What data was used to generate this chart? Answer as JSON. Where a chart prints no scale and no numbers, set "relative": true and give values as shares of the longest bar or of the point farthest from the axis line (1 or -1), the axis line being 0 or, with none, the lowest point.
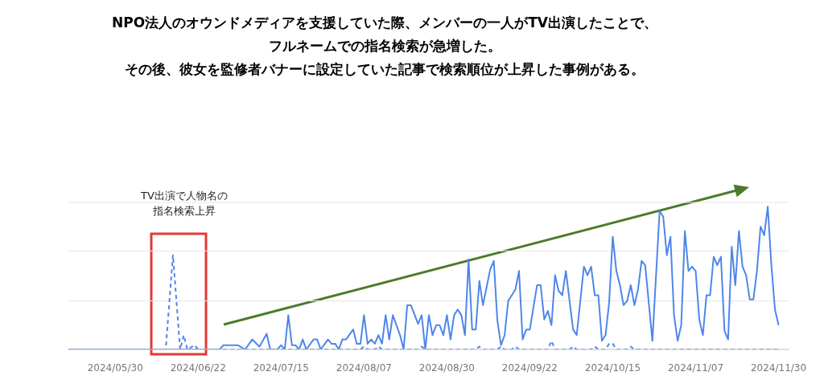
{
  "chart_data": {
    "type": "line",
    "title": "NPO法人のオウンドメディアを支援していた際、メンバーの一人がTV出演したことで、フルネームでの指名検索が急増した。",
    "subtitle": "その後、彼女を監修者バナーに設定していた記事で検索順位が上昇した事例がある。",
    "annotations": [
      "TV出演で人物名の指名検索上昇"
    ],
    "relative": true,
    "marker": "none",
    "ref_lines": [
      {
        "axis": "y",
        "value": 0.34,
        "color": "#e6e6e6"
      },
      {
        "axis": "y",
        "value": 0.69,
        "color": "#e6e6e6"
      },
      {
        "axis": "y",
        "value": 1.03,
        "color": "#e6e6e6"
      }
    ],
    "xlim": [
      "2024-05-17",
      "2024-12-03"
    ],
    "xticks": [
      {
        "value": "2024-05-30",
        "label": "2024/05/30"
      },
      {
        "value": "2024-06-22",
        "label": "2024/06/22"
      },
      {
        "value": "2024-07-15",
        "label": "2024/07/15"
      },
      {
        "value": "2024-08-07",
        "label": "2024/08/07"
      },
      {
        "value": "2024-08-30",
        "label": "2024/08/30"
      },
      {
        "value": "2024-09-22",
        "label": "2024/09/22"
      },
      {
        "value": "2024-10-15",
        "label": "2024/10/15"
      },
      {
        "value": "2024-11-07",
        "label": "2024/11/07"
      },
      {
        "value": "2024-11-30",
        "label": "2024/11/30"
      }
    ],
    "series": [
      {
        "color": "#4e86ec",
        "line_style": "solid",
        "x": [
          "2024-05-17",
          "2024-06-28",
          "2024-06-29",
          "2024-07-03",
          "2024-07-05",
          "2024-07-07",
          "2024-07-09",
          "2024-07-11",
          "2024-07-12",
          "2024-07-14",
          "2024-07-15",
          "2024-07-16",
          "2024-07-17",
          "2024-07-18",
          "2024-07-19",
          "2024-07-20",
          "2024-07-21",
          "2024-07-22",
          "2024-07-24",
          "2024-07-25",
          "2024-07-26",
          "2024-07-28",
          "2024-07-29",
          "2024-07-30",
          "2024-07-31",
          "2024-08-01",
          "2024-08-02",
          "2024-08-04",
          "2024-08-05",
          "2024-08-06",
          "2024-08-07",
          "2024-08-08",
          "2024-08-09",
          "2024-08-10",
          "2024-08-11",
          "2024-08-12",
          "2024-08-13",
          "2024-08-14",
          "2024-08-15",
          "2024-08-17",
          "2024-08-18",
          "2024-08-19",
          "2024-08-20",
          "2024-08-22",
          "2024-08-23",
          "2024-08-24",
          "2024-08-25",
          "2024-08-26",
          "2024-08-27",
          "2024-08-28",
          "2024-08-29",
          "2024-08-30",
          "2024-08-31",
          "2024-09-01",
          "2024-09-02",
          "2024-09-03",
          "2024-09-04",
          "2024-09-05",
          "2024-09-06",
          "2024-09-07",
          "2024-09-08",
          "2024-09-09",
          "2024-09-11",
          "2024-09-12",
          "2024-09-13",
          "2024-09-14",
          "2024-09-15",
          "2024-09-16",
          "2024-09-17",
          "2024-09-18",
          "2024-09-19",
          "2024-09-20",
          "2024-09-21",
          "2024-09-22",
          "2024-09-24",
          "2024-09-25",
          "2024-09-26",
          "2024-09-27",
          "2024-09-28",
          "2024-09-29",
          "2024-09-30",
          "2024-10-01",
          "2024-10-02",
          "2024-10-04",
          "2024-10-05",
          "2024-10-07",
          "2024-10-08",
          "2024-10-09",
          "2024-10-10",
          "2024-10-11",
          "2024-10-12",
          "2024-10-13",
          "2024-10-14",
          "2024-10-15",
          "2024-10-16",
          "2024-10-17",
          "2024-10-18",
          "2024-10-19",
          "2024-10-20",
          "2024-10-21",
          "2024-10-22",
          "2024-10-23",
          "2024-10-24",
          "2024-10-26",
          "2024-10-28",
          "2024-10-29",
          "2024-10-30",
          "2024-10-31",
          "2024-11-01",
          "2024-11-02",
          "2024-11-03",
          "2024-11-04",
          "2024-11-05",
          "2024-11-06",
          "2024-11-07",
          "2024-11-08",
          "2024-11-09",
          "2024-11-10",
          "2024-11-11",
          "2024-11-12",
          "2024-11-13",
          "2024-11-14",
          "2024-11-15",
          "2024-11-16",
          "2024-11-17",
          "2024-11-18",
          "2024-11-19",
          "2024-11-20",
          "2024-11-21",
          "2024-11-22",
          "2024-11-23",
          "2024-11-24",
          "2024-11-25",
          "2024-11-26",
          "2024-11-27",
          "2024-11-28",
          "2024-11-29",
          "2024-11-30"
        ],
        "values": [
          0,
          0,
          0.03,
          0.03,
          0,
          0.07,
          0.02,
          0.11,
          0,
          0,
          0.03,
          0,
          0.24,
          0.03,
          0.03,
          0,
          0.07,
          0,
          0.07,
          0.07,
          0,
          0.07,
          0.04,
          0.04,
          0,
          0.07,
          0.07,
          0.14,
          0.04,
          0.04,
          0.24,
          0.04,
          0.07,
          0.04,
          0.1,
          0.04,
          0.24,
          0.07,
          0.24,
          0.1,
          0,
          0.31,
          0.31,
          0.18,
          0.24,
          0,
          0.24,
          0.1,
          0.17,
          0.17,
          0.1,
          0.24,
          0.07,
          0.24,
          0.28,
          0.24,
          0.1,
          0.63,
          0.14,
          0.14,
          0.48,
          0.31,
          0.56,
          0.62,
          0.2,
          0.03,
          0.1,
          0.34,
          0.38,
          0.42,
          0.55,
          0.07,
          0.14,
          0.14,
          0.45,
          0.45,
          0.21,
          0.27,
          0.17,
          0.52,
          0.41,
          0.38,
          0.55,
          0.14,
          0.1,
          0.58,
          0.52,
          0.58,
          0.38,
          0.38,
          0.06,
          0.1,
          0.33,
          0.79,
          0.55,
          0.45,
          0.31,
          0.34,
          0.45,
          0.31,
          0.42,
          0.62,
          0.59,
          0.06,
          0.97,
          0.93,
          0.66,
          0.79,
          0.24,
          0.06,
          0.17,
          0.83,
          0.55,
          0.58,
          0.55,
          0.21,
          0.1,
          0.38,
          0.38,
          0.65,
          0.59,
          0.65,
          0.13,
          0.07,
          0.72,
          0.45,
          0.83,
          0.58,
          0.52,
          0.35,
          0.35,
          0.55,
          0.86,
          0.8,
          1,
          0.59,
          0.28,
          0.17
        ]
      },
      {
        "color": "#4e86ec",
        "line_style": "dashed",
        "x": [
          "2024-05-17",
          "2024-06-13",
          "2024-06-15",
          "2024-06-17",
          "2024-06-18",
          "2024-06-19",
          "2024-06-21",
          "2024-06-22",
          "2024-08-06",
          "2024-08-07",
          "2024-08-08",
          "2024-08-10",
          "2024-08-11",
          "2024-08-12",
          "2024-08-22",
          "2024-08-23",
          "2024-08-24",
          "2024-09-07",
          "2024-09-08",
          "2024-09-09",
          "2024-09-13",
          "2024-09-14",
          "2024-09-15",
          "2024-09-17",
          "2024-09-18",
          "2024-09-19",
          "2024-09-27",
          "2024-09-28",
          "2024-09-29",
          "2024-10-03",
          "2024-10-04",
          "2024-10-05",
          "2024-10-09",
          "2024-10-10",
          "2024-10-11",
          "2024-10-13",
          "2024-10-14",
          "2024-10-15",
          "2024-10-16",
          "2024-10-19",
          "2024-10-20",
          "2024-10-21",
          "2024-11-30"
        ],
        "values": [
          0,
          0,
          0.66,
          0,
          0.1,
          0,
          0.03,
          0,
          0,
          0.02,
          0,
          0,
          0.02,
          0,
          0,
          0.02,
          0,
          0,
          0.02,
          0,
          0,
          0.02,
          0,
          0,
          0.02,
          0,
          0,
          0.06,
          0,
          0,
          0.02,
          0,
          0,
          0.02,
          0,
          0,
          0.04,
          0.04,
          0,
          0,
          0.02,
          0,
          0
        ]
      }
    ]
  }
}
